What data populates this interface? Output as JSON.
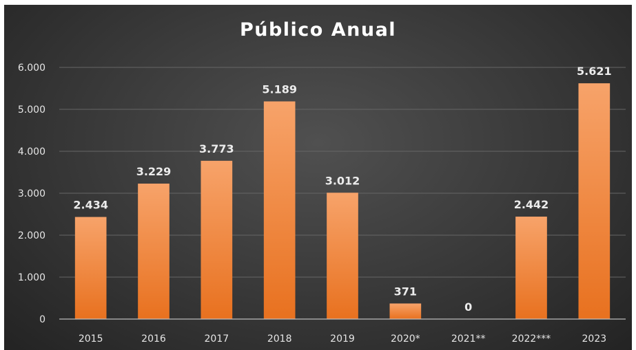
{
  "chart_data": {
    "type": "bar",
    "title": "Público Anual",
    "xlabel": "",
    "ylabel": "",
    "categories": [
      "2015",
      "2016",
      "2017",
      "2018",
      "2019",
      "2020*",
      "2021**",
      "2022***",
      "2023"
    ],
    "values": [
      2434,
      3229,
      3773,
      5189,
      3012,
      371,
      0,
      2442,
      5621
    ],
    "value_labels": [
      "2.434",
      "3.229",
      "3.773",
      "5.189",
      "3.012",
      "371",
      "0",
      "2.442",
      "5.621"
    ],
    "ylim": [
      0,
      6000
    ],
    "yticks": [
      0,
      1000,
      2000,
      3000,
      4000,
      5000,
      6000
    ],
    "ytick_labels": [
      "0",
      "1.000",
      "2.000",
      "3.000",
      "4.000",
      "5.000",
      "6.000"
    ],
    "grid": true,
    "legend": "none",
    "colors": {
      "bar_top": "#f7a36a",
      "bar_bottom": "#e8711f",
      "background": "#3c3c3c",
      "text": "#ffffff"
    }
  }
}
